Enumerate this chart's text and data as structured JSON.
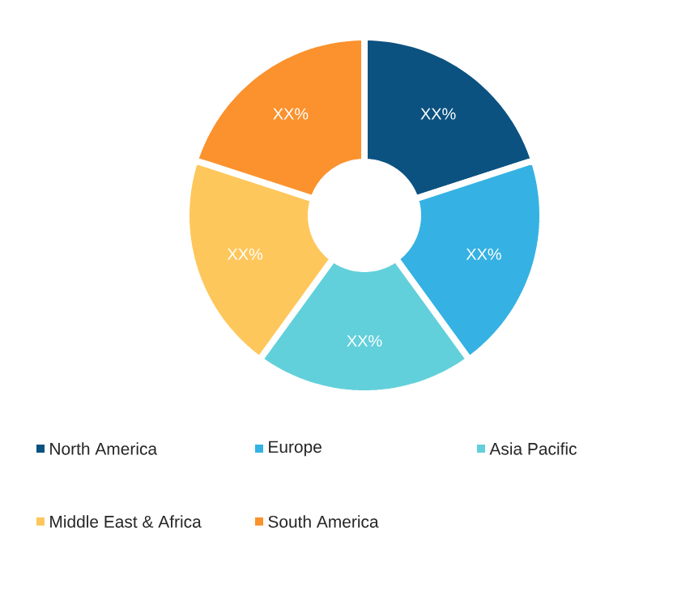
{
  "chart_data": {
    "type": "donut",
    "categories": [
      "North America",
      "Europe",
      "Asia Pacific",
      "Middle East & Africa",
      "South America"
    ],
    "values": [
      20,
      20,
      20,
      20,
      20
    ],
    "value_labels": [
      "XX%",
      "XX%",
      "XX%",
      "XX%",
      "XX%"
    ],
    "colors": [
      "#0b5281",
      "#35b2e3",
      "#62d0da",
      "#fec75c",
      "#fb922e"
    ],
    "legend": "bottom"
  }
}
